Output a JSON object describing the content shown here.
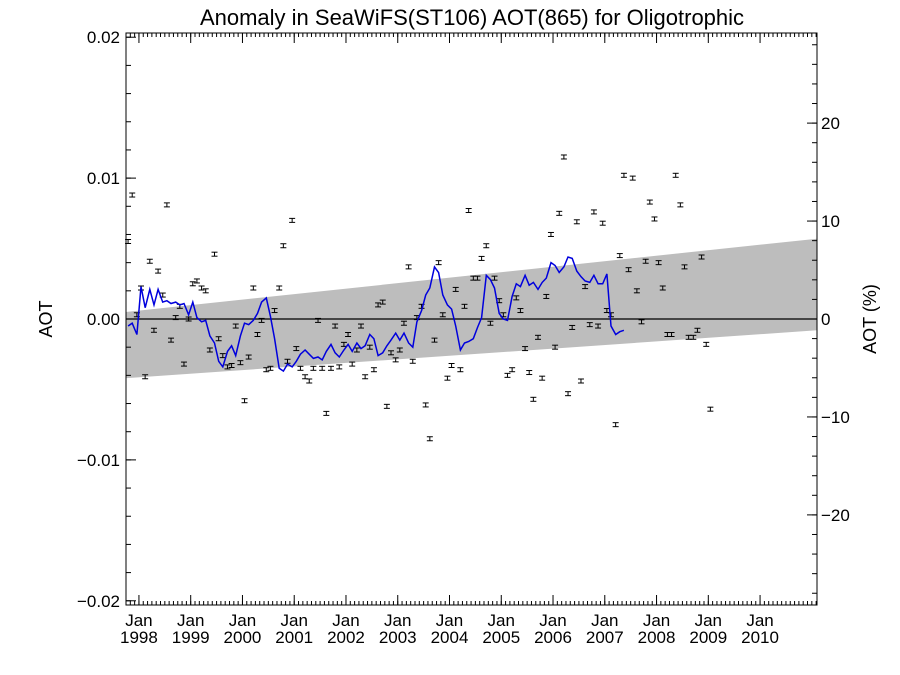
{
  "chart_data": {
    "type": "line",
    "title": "Anomaly in SeaWiFS(ST106) AOT(865) for Oligotrophic",
    "ylabel": "AOT",
    "y2label": "AOT (%)",
    "xlim": [
      1997.75,
      2011.1
    ],
    "ylim": [
      -0.0203,
      0.0203
    ],
    "y2lim": [
      -29.2,
      29.2
    ],
    "y_ticks": [
      {
        "value": -0.02,
        "label": "−0.02"
      },
      {
        "value": -0.01,
        "label": "−0.01"
      },
      {
        "value": 0.0,
        "label": "0.00"
      },
      {
        "value": 0.01,
        "label": "0.01"
      },
      {
        "value": 0.02,
        "label": "0.02"
      }
    ],
    "y2_ticks": [
      {
        "value": -20,
        "label": "−20"
      },
      {
        "value": -10,
        "label": "−10"
      },
      {
        "value": 0,
        "label": "0"
      },
      {
        "value": 10,
        "label": "10"
      },
      {
        "value": 20,
        "label": "20"
      }
    ],
    "x_ticks": [
      {
        "value": 1998.0,
        "month": "Jan",
        "year": "1998"
      },
      {
        "value": 1999.0,
        "month": "Jan",
        "year": "1999"
      },
      {
        "value": 2000.0,
        "month": "Jan",
        "year": "2000"
      },
      {
        "value": 2001.0,
        "month": "Jan",
        "year": "2001"
      },
      {
        "value": 2002.0,
        "month": "Jan",
        "year": "2002"
      },
      {
        "value": 2003.0,
        "month": "Jan",
        "year": "2003"
      },
      {
        "value": 2004.0,
        "month": "Jan",
        "year": "2004"
      },
      {
        "value": 2005.0,
        "month": "Jan",
        "year": "2005"
      },
      {
        "value": 2006.0,
        "month": "Jan",
        "year": "2006"
      },
      {
        "value": 2007.0,
        "month": "Jan",
        "year": "2007"
      },
      {
        "value": 2008.0,
        "month": "Jan",
        "year": "2008"
      },
      {
        "value": 2009.0,
        "month": "Jan",
        "year": "2009"
      },
      {
        "value": 2010.0,
        "month": "Jan",
        "year": "2010"
      }
    ],
    "trend_band": {
      "upper": [
        [
          1997.75,
          0.0005
        ],
        [
          2011.1,
          0.0057
        ]
      ],
      "lower": [
        [
          1997.75,
          -0.0042
        ],
        [
          2011.1,
          -0.0008
        ]
      ]
    },
    "zero_line": 0,
    "monthly_points": [
      [
        1997.79,
        0.0055
      ],
      [
        1997.87,
        0.0088
      ],
      [
        1997.96,
        0.0003
      ],
      [
        1998.04,
        0.0022
      ],
      [
        1998.12,
        -0.0041
      ],
      [
        1998.21,
        0.0041
      ],
      [
        1998.29,
        -0.0008
      ],
      [
        1998.37,
        0.0034
      ],
      [
        1998.46,
        0.0017
      ],
      [
        1998.54,
        0.0081
      ],
      [
        1998.62,
        -0.0015
      ],
      [
        1998.71,
        0.0001
      ],
      [
        1998.79,
        0.0009
      ],
      [
        1998.87,
        -0.0032
      ],
      [
        1998.96,
        0.0
      ],
      [
        1999.04,
        0.0025
      ],
      [
        1999.12,
        0.0027
      ],
      [
        1999.21,
        0.0022
      ],
      [
        1999.29,
        0.002
      ],
      [
        1999.37,
        -0.0022
      ],
      [
        1999.46,
        0.0046
      ],
      [
        1999.54,
        -0.0014
      ],
      [
        1999.62,
        -0.0026
      ],
      [
        1999.71,
        -0.0034
      ],
      [
        1999.79,
        -0.0033
      ],
      [
        1999.87,
        -0.0005
      ],
      [
        1999.96,
        -0.0031
      ],
      [
        2000.04,
        -0.0058
      ],
      [
        2000.12,
        -0.0027
      ],
      [
        2000.21,
        0.0022
      ],
      [
        2000.29,
        -0.0011
      ],
      [
        2000.37,
        -0.0001
      ],
      [
        2000.46,
        -0.0036
      ],
      [
        2000.54,
        -0.0035
      ],
      [
        2000.62,
        0.0006
      ],
      [
        2000.71,
        0.0022
      ],
      [
        2000.79,
        0.0052
      ],
      [
        2000.87,
        -0.003
      ],
      [
        2000.96,
        0.007
      ],
      [
        2001.04,
        -0.0021
      ],
      [
        2001.12,
        -0.0035
      ],
      [
        2001.21,
        -0.0041
      ],
      [
        2001.29,
        -0.0044
      ],
      [
        2001.37,
        -0.0035
      ],
      [
        2001.46,
        -0.0001
      ],
      [
        2001.54,
        -0.0035
      ],
      [
        2001.62,
        -0.0067
      ],
      [
        2001.71,
        -0.0035
      ],
      [
        2001.79,
        -0.0005
      ],
      [
        2001.87,
        -0.0034
      ],
      [
        2001.96,
        -0.0018
      ],
      [
        2002.04,
        -0.0011
      ],
      [
        2002.12,
        -0.0032
      ],
      [
        2002.21,
        -0.0022
      ],
      [
        2002.29,
        -0.0005
      ],
      [
        2002.37,
        -0.0041
      ],
      [
        2002.46,
        -0.002
      ],
      [
        2002.54,
        -0.0036
      ],
      [
        2002.62,
        0.001
      ],
      [
        2002.71,
        0.0012
      ],
      [
        2002.79,
        -0.0062
      ],
      [
        2002.87,
        -0.0024
      ],
      [
        2002.96,
        -0.0029
      ],
      [
        2003.04,
        -0.0022
      ],
      [
        2003.12,
        -0.0003
      ],
      [
        2003.21,
        0.0037
      ],
      [
        2003.29,
        -0.003
      ],
      [
        2003.37,
        0.0001
      ],
      [
        2003.46,
        0.0009
      ],
      [
        2003.54,
        -0.0061
      ],
      [
        2003.62,
        -0.0085
      ],
      [
        2003.71,
        -0.0015
      ],
      [
        2003.79,
        0.004
      ],
      [
        2003.87,
        0.0003
      ],
      [
        2003.96,
        -0.0042
      ],
      [
        2004.04,
        -0.0033
      ],
      [
        2004.12,
        0.0021
      ],
      [
        2004.21,
        -0.0036
      ],
      [
        2004.29,
        0.0009
      ],
      [
        2004.37,
        0.0077
      ],
      [
        2004.46,
        0.0029
      ],
      [
        2004.54,
        0.0029
      ],
      [
        2004.62,
        0.0043
      ],
      [
        2004.71,
        0.0052
      ],
      [
        2004.79,
        -0.0003
      ],
      [
        2004.87,
        0.0029
      ],
      [
        2004.96,
        0.0013
      ],
      [
        2005.04,
        0.0003
      ],
      [
        2005.12,
        -0.004
      ],
      [
        2005.21,
        -0.0036
      ],
      [
        2005.29,
        0.0015
      ],
      [
        2005.37,
        0.0006
      ],
      [
        2005.46,
        -0.0021
      ],
      [
        2005.54,
        -0.0038
      ],
      [
        2005.62,
        -0.0057
      ],
      [
        2005.71,
        -0.0013
      ],
      [
        2005.79,
        -0.0042
      ],
      [
        2005.87,
        0.0016
      ],
      [
        2005.96,
        0.006
      ],
      [
        2006.04,
        -0.002
      ],
      [
        2006.12,
        0.0075
      ],
      [
        2006.21,
        0.0115
      ],
      [
        2006.29,
        -0.0053
      ],
      [
        2006.37,
        -0.0006
      ],
      [
        2006.46,
        0.0069
      ],
      [
        2006.54,
        -0.0044
      ],
      [
        2006.62,
        0.0023
      ],
      [
        2006.71,
        -0.0004
      ],
      [
        2006.79,
        0.0076
      ],
      [
        2006.87,
        -0.0005
      ],
      [
        2006.96,
        0.0068
      ],
      [
        2007.04,
        0.0006
      ],
      [
        2007.12,
        0.0003
      ],
      [
        2007.21,
        -0.0075
      ],
      [
        2007.29,
        0.0045
      ],
      [
        2007.37,
        0.0102
      ],
      [
        2007.46,
        0.0035
      ],
      [
        2007.54,
        0.01
      ],
      [
        2007.62,
        0.002
      ],
      [
        2007.71,
        -0.0002
      ],
      [
        2007.79,
        0.0041
      ],
      [
        2007.87,
        0.0083
      ],
      [
        2007.96,
        0.0071
      ],
      [
        2008.04,
        0.004
      ],
      [
        2008.12,
        0.0022
      ],
      [
        2008.21,
        -0.0011
      ],
      [
        2008.29,
        -0.0011
      ],
      [
        2008.37,
        0.0102
      ],
      [
        2008.46,
        0.0081
      ],
      [
        2008.54,
        0.0037
      ],
      [
        2008.62,
        -0.0013
      ],
      [
        2008.71,
        -0.0013
      ],
      [
        2008.79,
        -0.0008
      ],
      [
        2008.87,
        0.0044
      ],
      [
        2008.96,
        -0.0018
      ],
      [
        2009.04,
        -0.0064
      ]
    ],
    "smoothed_series": {
      "color": "#0000dd",
      "points": [
        [
          1997.79,
          -0.0005
        ],
        [
          1997.87,
          -0.0003
        ],
        [
          1997.96,
          -0.0011
        ],
        [
          1998.04,
          0.0023
        ],
        [
          1998.12,
          0.0008
        ],
        [
          1998.21,
          0.0021
        ],
        [
          1998.29,
          0.001
        ],
        [
          1998.37,
          0.0021
        ],
        [
          1998.46,
          0.0012
        ],
        [
          1998.54,
          0.0013
        ],
        [
          1998.62,
          0.0011
        ],
        [
          1998.71,
          0.0012
        ],
        [
          1998.79,
          0.001
        ],
        [
          1998.87,
          0.0011
        ],
        [
          1998.96,
          0.0003
        ],
        [
          1999.04,
          0.0012
        ],
        [
          1999.12,
          0.0001
        ],
        [
          1999.21,
          -0.0002
        ],
        [
          1999.29,
          -0.0001
        ],
        [
          1999.37,
          -0.0012
        ],
        [
          1999.46,
          -0.0017
        ],
        [
          1999.54,
          -0.003
        ],
        [
          1999.62,
          -0.0034
        ],
        [
          1999.71,
          -0.0023
        ],
        [
          1999.79,
          -0.0019
        ],
        [
          1999.87,
          -0.0026
        ],
        [
          1999.96,
          -0.0012
        ],
        [
          2000.04,
          -0.0003
        ],
        [
          2000.12,
          -0.0004
        ],
        [
          2000.21,
          -0.0001
        ],
        [
          2000.29,
          0.0004
        ],
        [
          2000.37,
          0.0012
        ],
        [
          2000.46,
          0.0015
        ],
        [
          2000.54,
          0.0002
        ],
        [
          2000.62,
          -0.0014
        ],
        [
          2000.71,
          -0.0035
        ],
        [
          2000.79,
          -0.0037
        ],
        [
          2000.87,
          -0.0032
        ],
        [
          2000.96,
          -0.0034
        ],
        [
          2001.04,
          -0.003
        ],
        [
          2001.12,
          -0.0025
        ],
        [
          2001.21,
          -0.0022
        ],
        [
          2001.29,
          -0.0025
        ],
        [
          2001.37,
          -0.0028
        ],
        [
          2001.46,
          -0.0027
        ],
        [
          2001.54,
          -0.0029
        ],
        [
          2001.62,
          -0.0023
        ],
        [
          2001.71,
          -0.0018
        ],
        [
          2001.79,
          -0.0024
        ],
        [
          2001.87,
          -0.0027
        ],
        [
          2001.96,
          -0.0022
        ],
        [
          2002.04,
          -0.0018
        ],
        [
          2002.12,
          -0.0023
        ],
        [
          2002.21,
          -0.0017
        ],
        [
          2002.29,
          -0.0021
        ],
        [
          2002.37,
          -0.0019
        ],
        [
          2002.46,
          -0.0011
        ],
        [
          2002.54,
          -0.0014
        ],
        [
          2002.62,
          -0.0026
        ],
        [
          2002.71,
          -0.0024
        ],
        [
          2002.79,
          -0.0019
        ],
        [
          2002.87,
          -0.0015
        ],
        [
          2002.96,
          -0.001
        ],
        [
          2003.04,
          -0.0015
        ],
        [
          2003.12,
          -0.001
        ],
        [
          2003.21,
          -0.0017
        ],
        [
          2003.29,
          -0.002
        ],
        [
          2003.37,
          -0.0002
        ],
        [
          2003.46,
          0.0006
        ],
        [
          2003.54,
          0.0017
        ],
        [
          2003.62,
          0.0022
        ],
        [
          2003.71,
          0.0037
        ],
        [
          2003.79,
          0.0033
        ],
        [
          2003.87,
          0.0017
        ],
        [
          2003.96,
          0.001
        ],
        [
          2004.04,
          0.0007
        ],
        [
          2004.12,
          -0.0005
        ],
        [
          2004.21,
          -0.0022
        ],
        [
          2004.29,
          -0.0017
        ],
        [
          2004.37,
          -0.0016
        ],
        [
          2004.46,
          -0.0014
        ],
        [
          2004.54,
          -0.0006
        ],
        [
          2004.62,
          0.0001
        ],
        [
          2004.71,
          0.0031
        ],
        [
          2004.79,
          0.0028
        ],
        [
          2004.87,
          0.0022
        ],
        [
          2004.96,
          0.0004
        ],
        [
          2005.04,
          0.0
        ],
        [
          2005.12,
          -0.0001
        ],
        [
          2005.21,
          0.0016
        ],
        [
          2005.29,
          0.0025
        ],
        [
          2005.37,
          0.0023
        ],
        [
          2005.46,
          0.0031
        ],
        [
          2005.54,
          0.0024
        ],
        [
          2005.62,
          0.0026
        ],
        [
          2005.71,
          0.0021
        ],
        [
          2005.79,
          0.0026
        ],
        [
          2005.87,
          0.0029
        ],
        [
          2005.96,
          0.004
        ],
        [
          2006.04,
          0.0038
        ],
        [
          2006.12,
          0.0033
        ],
        [
          2006.21,
          0.0037
        ],
        [
          2006.29,
          0.0044
        ],
        [
          2006.37,
          0.0043
        ],
        [
          2006.46,
          0.0034
        ],
        [
          2006.54,
          0.003
        ],
        [
          2006.62,
          0.0027
        ],
        [
          2006.71,
          0.0026
        ],
        [
          2006.79,
          0.0031
        ],
        [
          2006.87,
          0.0025
        ],
        [
          2006.96,
          0.0025
        ],
        [
          2007.04,
          0.0032
        ],
        [
          2007.12,
          -0.0005
        ],
        [
          2007.21,
          -0.0011
        ],
        [
          2007.29,
          -0.0009
        ],
        [
          2007.37,
          -0.0008
        ]
      ]
    }
  }
}
